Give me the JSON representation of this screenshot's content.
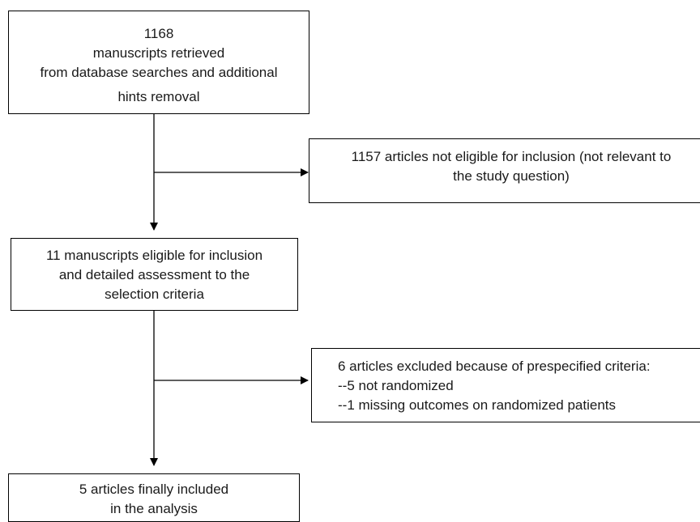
{
  "boxes": {
    "retrieved": {
      "lines": [
        "1168",
        "manuscripts retrieved",
        "from database searches and additional",
        "hints removal"
      ]
    },
    "not_eligible": {
      "lines": [
        "1157 articles not eligible for inclusion (not relevant to",
        "the study question)"
      ]
    },
    "eligible": {
      "lines": [
        "11 manuscripts eligible for inclusion",
        "and detailed assessment to the",
        "selection criteria"
      ]
    },
    "excluded": {
      "lines": [
        "6 articles excluded because of prespecified criteria:",
        "--5 not randomized",
        "--1 missing outcomes on randomized patients"
      ]
    },
    "included": {
      "lines": [
        "5 articles finally included",
        "in the analysis"
      ]
    }
  }
}
